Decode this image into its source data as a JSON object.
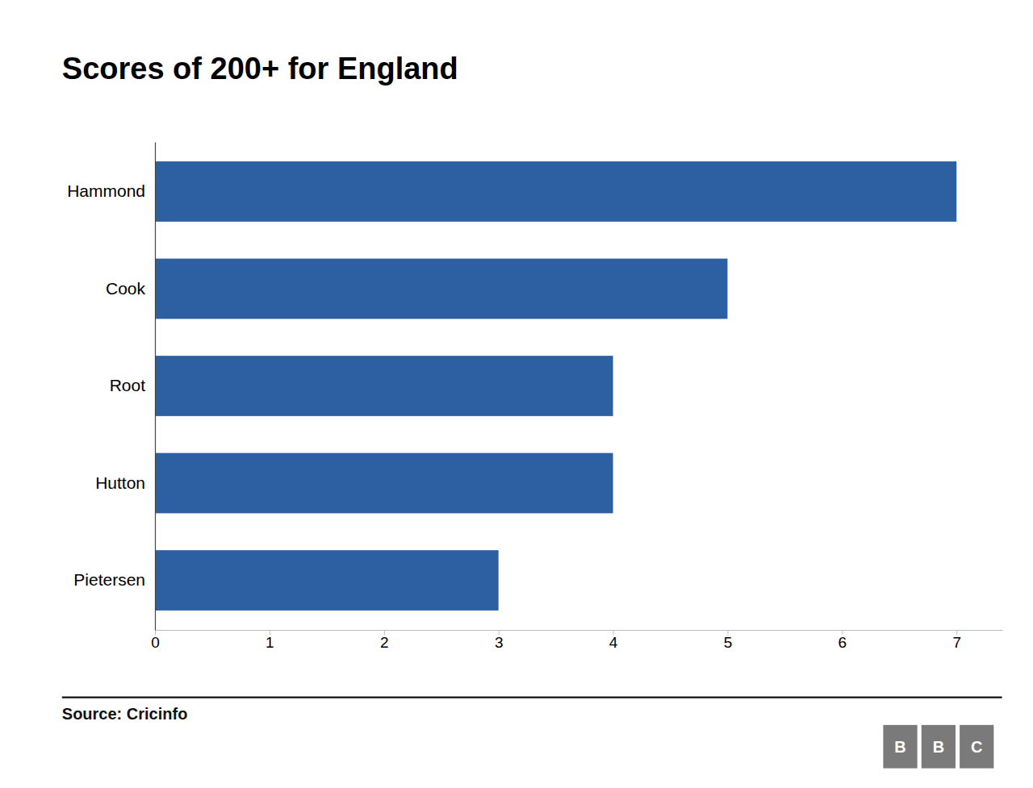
{
  "chart_data": {
    "type": "bar",
    "orientation": "horizontal",
    "title": "Scores of 200+ for England",
    "categories": [
      "Hammond",
      "Cook",
      "Root",
      "Hutton",
      "Pietersen"
    ],
    "values": [
      7,
      5,
      4,
      4,
      3
    ],
    "color": "#2d5fa3",
    "xlim": [
      0,
      7.4
    ],
    "xticks": [
      0,
      1,
      2,
      3,
      4,
      5,
      6,
      7
    ],
    "grid": false,
    "annotations": [
      "Source: Cricinfo",
      "B",
      "B",
      "C"
    ]
  }
}
